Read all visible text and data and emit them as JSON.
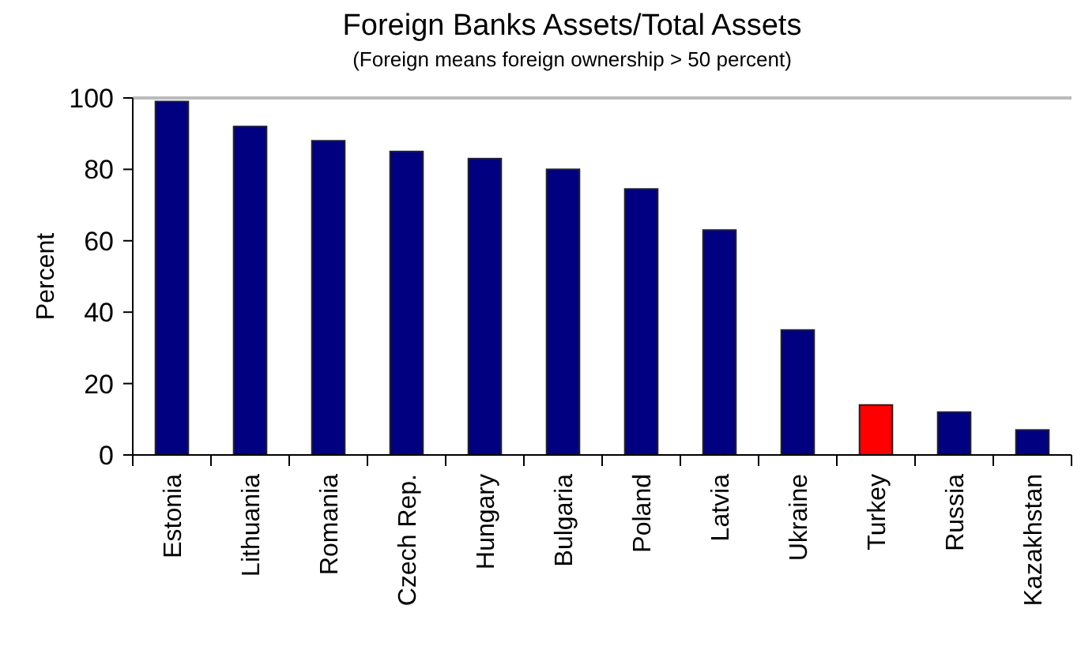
{
  "chart_data": {
    "type": "bar",
    "title": "Foreign Banks Assets/Total Assets",
    "subtitle": "(Foreign means foreign ownership > 50 percent)",
    "ylabel": "Percent",
    "categories": [
      "Estonia",
      "Lithuania",
      "Romania",
      "Czech Rep.",
      "Hungary",
      "Bulgaria",
      "Poland",
      "Latvia",
      "Ukraine",
      "Turkey",
      "Russia",
      "Kazakhstan"
    ],
    "values": [
      99,
      92,
      88,
      85,
      83,
      80,
      74.5,
      63,
      35,
      14,
      12,
      7
    ],
    "colors": [
      "#000080",
      "#000080",
      "#000080",
      "#000080",
      "#000080",
      "#000080",
      "#000080",
      "#000080",
      "#000080",
      "#ff0000",
      "#000080",
      "#000080"
    ],
    "ylim": [
      0,
      100
    ],
    "yticks": [
      0,
      20,
      40,
      60,
      80,
      100
    ],
    "grid": false
  }
}
